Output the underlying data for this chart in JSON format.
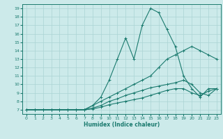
{
  "xlabel": "Humidex (Indice chaleur)",
  "bg_color": "#cceaea",
  "grid_color": "#aad4d4",
  "line_color": "#1a7a6e",
  "xlim": [
    -0.5,
    23.5
  ],
  "ylim": [
    6.5,
    19.5
  ],
  "xticks": [
    0,
    1,
    2,
    3,
    4,
    5,
    6,
    7,
    8,
    9,
    10,
    11,
    12,
    13,
    14,
    15,
    16,
    17,
    18,
    19,
    20,
    21,
    22,
    23
  ],
  "yticks": [
    7,
    8,
    9,
    10,
    11,
    12,
    13,
    14,
    15,
    16,
    17,
    18,
    19
  ],
  "series": [
    {
      "x": [
        0,
        1,
        2,
        3,
        4,
        5,
        6,
        7,
        8,
        9,
        10,
        11,
        12,
        13,
        14,
        15,
        16,
        17,
        18,
        19,
        20,
        21,
        22,
        23
      ],
      "y": [
        7,
        7,
        7,
        7,
        7,
        7,
        7,
        7,
        7.5,
        8.5,
        10.5,
        13,
        15.5,
        13,
        17,
        19,
        18.5,
        16.5,
        14.5,
        11,
        9.5,
        8.5,
        9.5,
        9.5
      ]
    },
    {
      "x": [
        0,
        1,
        2,
        3,
        4,
        5,
        6,
        7,
        8,
        9,
        10,
        11,
        12,
        13,
        14,
        15,
        16,
        17,
        18,
        19,
        20,
        21,
        22,
        23
      ],
      "y": [
        7,
        7,
        7,
        7,
        7,
        7,
        7,
        7,
        7.5,
        8,
        8.5,
        9,
        9.5,
        10,
        10.5,
        11,
        12,
        13,
        13.5,
        14,
        14.5,
        14,
        13.5,
        13
      ]
    },
    {
      "x": [
        0,
        1,
        2,
        3,
        4,
        5,
        6,
        7,
        8,
        9,
        10,
        11,
        12,
        13,
        14,
        15,
        16,
        17,
        18,
        19,
        20,
        21,
        22,
        23
      ],
      "y": [
        7,
        7,
        7,
        7,
        7,
        7,
        7,
        7,
        7.2,
        7.5,
        8,
        8.3,
        8.7,
        9,
        9.3,
        9.6,
        9.8,
        10,
        10.2,
        10.5,
        10,
        9,
        8.7,
        9.5
      ]
    },
    {
      "x": [
        0,
        1,
        2,
        3,
        4,
        5,
        6,
        7,
        8,
        9,
        10,
        11,
        12,
        13,
        14,
        15,
        16,
        17,
        18,
        19,
        20,
        21,
        22,
        23
      ],
      "y": [
        7,
        7,
        7,
        7,
        7,
        7,
        7,
        7,
        7.1,
        7.3,
        7.6,
        7.8,
        8,
        8.2,
        8.4,
        8.7,
        9,
        9.3,
        9.5,
        9.5,
        9,
        8.7,
        9.2,
        9.5
      ]
    }
  ]
}
